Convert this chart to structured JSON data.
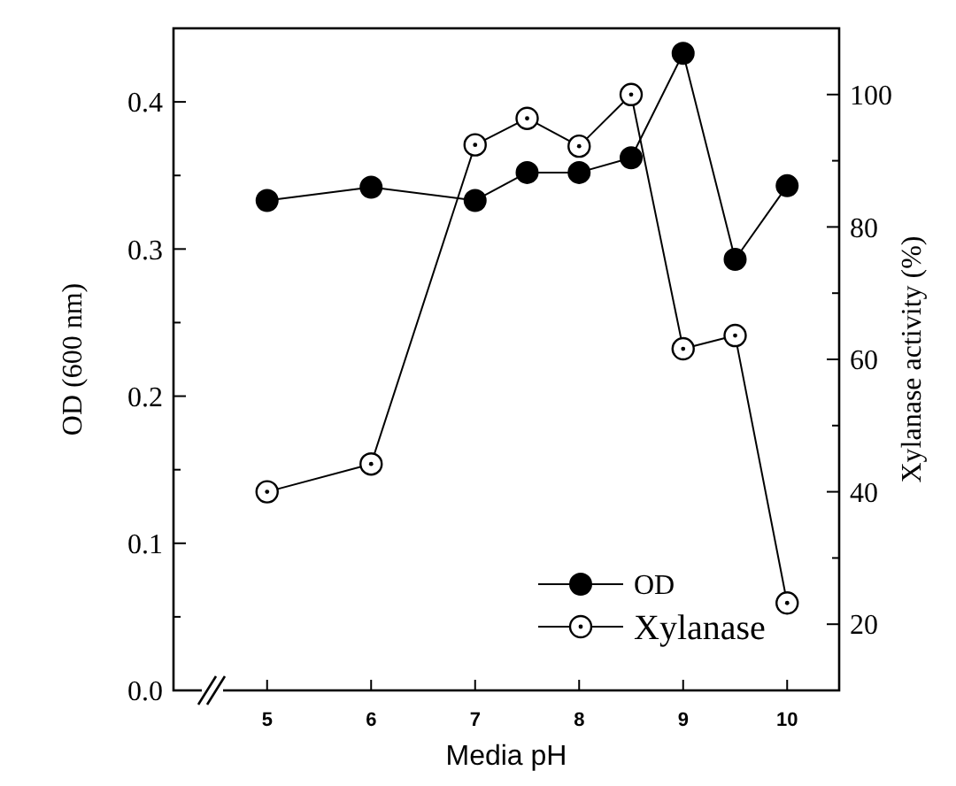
{
  "chart_data": {
    "type": "line",
    "xlabel": "Media pH",
    "ylabel": "OD (600 nm)",
    "y2label": "Xylanase activity (%)",
    "x": [
      5,
      6,
      7,
      7.5,
      8,
      8.5,
      9,
      9.5,
      10
    ],
    "xlim": [
      4.1,
      10.5
    ],
    "xticks": [
      5,
      6,
      7,
      8,
      9,
      10
    ],
    "ylim": [
      0,
      0.45
    ],
    "yticks": [
      "0.0",
      {
        "value": 0.05,
        "label": null
      },
      0.1,
      {
        "value": 0.15,
        "label": null
      },
      0.2,
      {
        "value": 0.25,
        "label": null
      },
      0.3,
      {
        "value": 0.35,
        "label": null
      },
      0.4
    ],
    "y2lim": [
      10,
      110
    ],
    "y2ticks": [
      20,
      {
        "value": 30,
        "label": null
      },
      40,
      {
        "value": 50,
        "label": null
      },
      60,
      {
        "value": 70,
        "label": null
      },
      80,
      {
        "value": 90,
        "label": null
      },
      100
    ],
    "series": [
      {
        "name": "OD",
        "color": "#000000",
        "marker": "circle",
        "values": [
          0.333,
          0.342,
          0.333,
          0.352,
          0.352,
          0.362,
          0.433,
          0.293,
          0.343
        ]
      },
      {
        "name": "Xylanase",
        "color": "#000000",
        "marker": "circle-open",
        "axis": "y2",
        "values": [
          40.0,
          44.2,
          92.4,
          96.4,
          92.2,
          100,
          61.6,
          63.6,
          23.2
        ]
      }
    ],
    "legend": "bottom right",
    "grid": false
  }
}
